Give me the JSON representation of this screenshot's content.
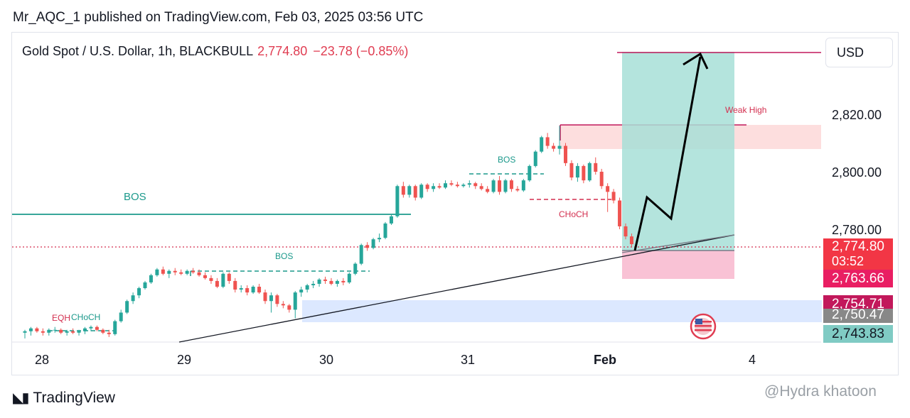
{
  "header": {
    "publisher": "Mr_AQC_1 published on TradingView.com, Feb 03, 2025 03:56 UTC"
  },
  "symbol": {
    "name": "Gold Spot / U.S. Dollar, 1h, BLACKBULL",
    "price": "2,774.80",
    "change": "−23.78 (−0.85%)"
  },
  "currency_button": "USD",
  "footer": {
    "brand": "TradingView",
    "watermark": "@Hydra khatoon"
  },
  "colors": {
    "up": "#26a69a",
    "down": "#ef5350",
    "accent": "#e03d52",
    "target_zone": "#b2dfdb",
    "stop_zone": "#f8bbd0",
    "demand_zone": "#d6e4ff"
  },
  "chart_data": {
    "type": "candlestick",
    "title": "Gold Spot / U.S. Dollar, 1h, BLACKBULL",
    "x_ticks": [
      "28",
      "29",
      "30",
      "31",
      "Feb",
      "4"
    ],
    "y_ticks": [
      2780,
      2800,
      2820
    ],
    "ylim": [
      2741,
      2850
    ],
    "current_price": 2774.8,
    "countdown": "03:52",
    "price_labels": [
      {
        "value": 2774.8,
        "text": "2,774.80",
        "color": "#f23645"
      },
      {
        "value": 2763.66,
        "text": "2,763.66",
        "color": "#e91e63"
      },
      {
        "value": 2754.71,
        "text": "2,754.71",
        "color": "#c2185b"
      },
      {
        "value": 2750.47,
        "text": "2,750.47",
        "color": "#888888"
      },
      {
        "value": 2743.83,
        "text": "2,743.83",
        "color": "#80cbc4"
      }
    ],
    "annotations": [
      "EQH",
      "CHoCH",
      "BOS",
      "BOS",
      "BOS",
      "CHoCH",
      "Weak High"
    ],
    "candles": [
      [
        2744.0,
        2745.0,
        2742.0,
        2744.5
      ],
      [
        2744.5,
        2746.0,
        2743.0,
        2745.5
      ],
      [
        2745.5,
        2746.0,
        2744.0,
        2744.5
      ],
      [
        2744.5,
        2745.5,
        2743.0,
        2744.0
      ],
      [
        2744.0,
        2745.5,
        2743.0,
        2745.0
      ],
      [
        2745.0,
        2746.0,
        2744.0,
        2745.0
      ],
      [
        2745.0,
        2745.5,
        2743.5,
        2744.0
      ],
      [
        2744.0,
        2745.0,
        2743.0,
        2744.5
      ],
      [
        2744.5,
        2745.5,
        2743.5,
        2744.0
      ],
      [
        2744.0,
        2745.0,
        2743.0,
        2744.5
      ],
      [
        2744.5,
        2746.0,
        2743.5,
        2745.5
      ],
      [
        2745.5,
        2746.5,
        2744.5,
        2746.0
      ],
      [
        2746.0,
        2746.5,
        2744.5,
        2745.0
      ],
      [
        2745.0,
        2745.5,
        2743.5,
        2744.0
      ],
      [
        2744.0,
        2745.0,
        2742.5,
        2743.5
      ],
      [
        2743.5,
        2748.5,
        2743.0,
        2748.0
      ],
      [
        2748.0,
        2752.0,
        2747.5,
        2751.0
      ],
      [
        2751.0,
        2755.5,
        2750.5,
        2755.0
      ],
      [
        2755.0,
        2758.0,
        2754.0,
        2757.0
      ],
      [
        2757.0,
        2760.0,
        2756.0,
        2759.5
      ],
      [
        2759.5,
        2762.0,
        2759.0,
        2761.5
      ],
      [
        2761.5,
        2764.5,
        2761.0,
        2764.0
      ],
      [
        2764.0,
        2766.5,
        2763.5,
        2766.0
      ],
      [
        2766.0,
        2767.0,
        2764.0,
        2764.5
      ],
      [
        2764.5,
        2766.0,
        2763.0,
        2765.5
      ],
      [
        2765.5,
        2766.5,
        2764.0,
        2765.0
      ],
      [
        2765.0,
        2766.0,
        2764.0,
        2764.5
      ],
      [
        2764.5,
        2766.0,
        2764.0,
        2765.5
      ],
      [
        2765.5,
        2766.5,
        2764.5,
        2765.0
      ],
      [
        2765.0,
        2766.0,
        2763.5,
        2764.0
      ],
      [
        2764.0,
        2765.0,
        2762.5,
        2763.0
      ],
      [
        2763.0,
        2764.0,
        2761.0,
        2762.0
      ],
      [
        2762.0,
        2763.0,
        2759.5,
        2760.0
      ],
      [
        2760.0,
        2765.0,
        2759.5,
        2764.5
      ],
      [
        2764.5,
        2765.0,
        2761.0,
        2762.0
      ],
      [
        2762.0,
        2763.0,
        2758.0,
        2759.0
      ],
      [
        2759.0,
        2760.5,
        2758.0,
        2759.5
      ],
      [
        2759.5,
        2760.5,
        2757.0,
        2758.0
      ],
      [
        2758.0,
        2760.5,
        2757.5,
        2760.0
      ],
      [
        2760.0,
        2761.0,
        2757.5,
        2758.0
      ],
      [
        2758.0,
        2759.0,
        2754.0,
        2755.0
      ],
      [
        2755.0,
        2758.0,
        2751.0,
        2757.0
      ],
      [
        2757.0,
        2757.5,
        2753.0,
        2754.0
      ],
      [
        2754.0,
        2755.0,
        2752.5,
        2753.5
      ],
      [
        2753.5,
        2754.0,
        2751.0,
        2752.0
      ],
      [
        2752.0,
        2758.5,
        2749.0,
        2758.0
      ],
      [
        2758.0,
        2760.0,
        2756.5,
        2759.0
      ],
      [
        2759.0,
        2761.0,
        2758.0,
        2760.5
      ],
      [
        2760.5,
        2762.0,
        2759.5,
        2761.0
      ],
      [
        2761.0,
        2763.0,
        2760.0,
        2762.5
      ],
      [
        2762.5,
        2763.5,
        2761.0,
        2762.0
      ],
      [
        2762.0,
        2763.0,
        2760.5,
        2761.0
      ],
      [
        2761.0,
        2762.5,
        2760.0,
        2762.0
      ],
      [
        2762.0,
        2763.0,
        2760.5,
        2761.5
      ],
      [
        2761.5,
        2765.0,
        2761.0,
        2764.5
      ],
      [
        2764.5,
        2768.5,
        2764.0,
        2768.0
      ],
      [
        2768.0,
        2775.0,
        2767.5,
        2774.5
      ],
      [
        2774.5,
        2775.5,
        2772.5,
        2773.5
      ],
      [
        2773.5,
        2777.0,
        2773.0,
        2776.5
      ],
      [
        2776.5,
        2778.5,
        2775.5,
        2777.0
      ],
      [
        2777.0,
        2782.5,
        2776.5,
        2782.0
      ],
      [
        2782.0,
        2785.0,
        2781.5,
        2784.5
      ],
      [
        2784.5,
        2795.5,
        2784.0,
        2795.0
      ],
      [
        2795.0,
        2796.5,
        2791.0,
        2792.0
      ],
      [
        2792.0,
        2795.5,
        2791.0,
        2795.0
      ],
      [
        2795.0,
        2795.5,
        2790.0,
        2791.0
      ],
      [
        2791.0,
        2796.0,
        2790.5,
        2795.5
      ],
      [
        2795.5,
        2796.0,
        2793.0,
        2794.0
      ],
      [
        2794.0,
        2796.0,
        2793.0,
        2795.0
      ],
      [
        2795.0,
        2796.0,
        2794.0,
        2794.5
      ],
      [
        2794.5,
        2797.0,
        2794.0,
        2796.0
      ],
      [
        2796.0,
        2797.0,
        2795.0,
        2795.5
      ],
      [
        2795.5,
        2796.5,
        2794.5,
        2795.0
      ],
      [
        2795.0,
        2796.0,
        2794.5,
        2795.5
      ],
      [
        2795.5,
        2797.0,
        2794.5,
        2796.0
      ],
      [
        2796.0,
        2796.5,
        2794.0,
        2795.0
      ],
      [
        2795.0,
        2796.0,
        2793.5,
        2794.0
      ],
      [
        2794.0,
        2795.0,
        2792.5,
        2793.0
      ],
      [
        2793.0,
        2797.5,
        2792.5,
        2797.0
      ],
      [
        2797.0,
        2798.5,
        2792.0,
        2793.0
      ],
      [
        2793.0,
        2797.5,
        2792.5,
        2797.0
      ],
      [
        2797.0,
        2797.5,
        2793.0,
        2794.0
      ],
      [
        2794.0,
        2795.0,
        2793.0,
        2793.5
      ],
      [
        2793.5,
        2797.5,
        2793.0,
        2797.0
      ],
      [
        2797.0,
        2802.5,
        2796.5,
        2802.0
      ],
      [
        2802.0,
        2807.5,
        2801.5,
        2807.0
      ],
      [
        2807.0,
        2812.5,
        2806.5,
        2812.0
      ],
      [
        2812.0,
        2813.5,
        2808.0,
        2809.0
      ],
      [
        2809.0,
        2810.0,
        2807.0,
        2808.0
      ],
      [
        2808.0,
        2816.0,
        2806.0,
        2809.0
      ],
      [
        2809.0,
        2810.0,
        2802.0,
        2803.0
      ],
      [
        2803.0,
        2804.0,
        2797.0,
        2798.0
      ],
      [
        2798.0,
        2803.0,
        2796.5,
        2802.0
      ],
      [
        2802.0,
        2802.5,
        2796.0,
        2797.0
      ],
      [
        2797.0,
        2803.5,
        2796.5,
        2803.0
      ],
      [
        2803.0,
        2805.0,
        2799.0,
        2800.0
      ],
      [
        2800.0,
        2801.0,
        2794.0,
        2795.0
      ],
      [
        2795.0,
        2796.0,
        2786.0,
        2793.0
      ],
      [
        2793.0,
        2794.0,
        2789.0,
        2790.0
      ],
      [
        2790.0,
        2791.0,
        2780.0,
        2781.0
      ],
      [
        2781.0,
        2782.0,
        2776.5,
        2777.5
      ],
      [
        2777.5,
        2778.5,
        2774.0,
        2774.8
      ]
    ]
  }
}
